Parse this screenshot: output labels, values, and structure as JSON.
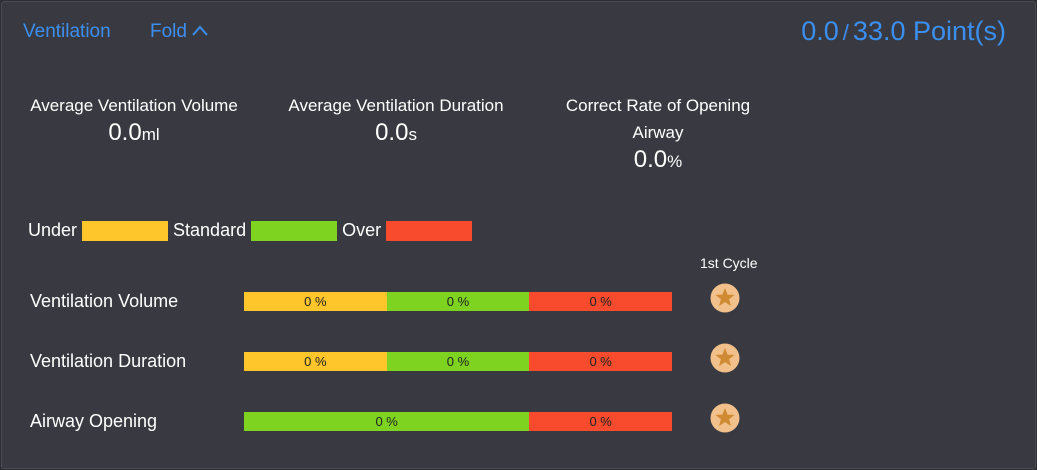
{
  "header": {
    "title": "Ventilation",
    "fold": "Fold",
    "score": "0.0",
    "separator": "/",
    "total": "33.0 Point(s)"
  },
  "stats": [
    {
      "label": "Average Ventilation Volume",
      "value": "0.0",
      "unit": "ml"
    },
    {
      "label": "Average Ventilation Duration",
      "value": "0.0",
      "unit": "s"
    },
    {
      "label": "Correct Rate of Opening Airway",
      "value": "0.0",
      "unit": "%"
    }
  ],
  "legend": [
    {
      "label": "Under",
      "color": "#fec62a"
    },
    {
      "label": "Standard",
      "color": "#7ed321"
    },
    {
      "label": "Over",
      "color": "#f84b2d"
    }
  ],
  "cycle_header": "1st Cycle",
  "rows": [
    {
      "label": "Ventilation Volume",
      "segments": [
        {
          "label": "0 %",
          "color": "#fec62a"
        },
        {
          "label": "0 %",
          "color": "#7ed321"
        },
        {
          "label": "0 %",
          "color": "#f84b2d"
        }
      ]
    },
    {
      "label": "Ventilation Duration",
      "segments": [
        {
          "label": "0 %",
          "color": "#fec62a"
        },
        {
          "label": "0 %",
          "color": "#7ed321"
        },
        {
          "label": "0 %",
          "color": "#f84b2d"
        }
      ]
    },
    {
      "label": "Airway Opening",
      "segments": [
        {
          "label": "0 %",
          "color": "#7ed321"
        },
        {
          "label": "0 %",
          "color": "#f84b2d"
        }
      ]
    }
  ]
}
